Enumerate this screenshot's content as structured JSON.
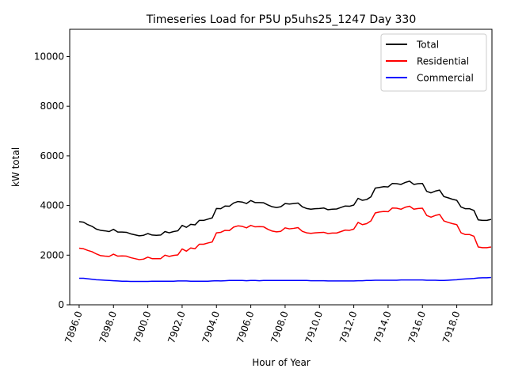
{
  "chart_data": {
    "type": "line",
    "title": "Timeseries Load for P5U p5uhs25_1247  Day 330",
    "xlabel": "Hour of Year",
    "ylabel": "kW total",
    "xlim": [
      7895.45,
      7920.05
    ],
    "ylim": [
      0,
      11100
    ],
    "x_ticks": [
      7896,
      7898,
      7900,
      7902,
      7904,
      7906,
      7908,
      7910,
      7912,
      7914,
      7916,
      7918
    ],
    "x_tick_labels": [
      "7896.0",
      "7898.0",
      "7900.0",
      "7902.0",
      "7904.0",
      "7906.0",
      "7908.0",
      "7910.0",
      "7912.0",
      "7914.0",
      "7916.0",
      "7918.0"
    ],
    "y_ticks": [
      0,
      2000,
      4000,
      6000,
      8000,
      10000
    ],
    "y_tick_labels": [
      "0",
      "2000",
      "4000",
      "6000",
      "8000",
      "10000"
    ],
    "x_start": 7896,
    "x_step": 0.25,
    "grid": false,
    "legend_position": "top-right",
    "series": [
      {
        "name": "Total",
        "color": "#000000",
        "values": [
          3350,
          3330,
          3230,
          3160,
          3050,
          3000,
          2980,
          2950,
          3040,
          2930,
          2930,
          2920,
          2860,
          2820,
          2780,
          2800,
          2870,
          2810,
          2800,
          2810,
          2950,
          2900,
          2950,
          2980,
          3200,
          3120,
          3240,
          3220,
          3400,
          3400,
          3450,
          3500,
          3880,
          3870,
          3980,
          3970,
          4100,
          4160,
          4140,
          4080,
          4200,
          4120,
          4120,
          4110,
          4020,
          3950,
          3920,
          3950,
          4080,
          4060,
          4080,
          4100,
          3950,
          3880,
          3850,
          3870,
          3880,
          3900,
          3830,
          3850,
          3860,
          3920,
          3980,
          3970,
          4020,
          4290,
          4210,
          4240,
          4350,
          4700,
          4730,
          4760,
          4750,
          4890,
          4880,
          4850,
          4930,
          4980,
          4850,
          4880,
          4890,
          4570,
          4510,
          4580,
          4620,
          4360,
          4310,
          4250,
          4210,
          3940,
          3870,
          3870,
          3800,
          3420,
          3400,
          3400,
          3440
        ]
      },
      {
        "name": "Residential",
        "color": "#ff0000",
        "values": [
          2280,
          2260,
          2190,
          2140,
          2050,
          1980,
          1960,
          1950,
          2040,
          1960,
          1970,
          1960,
          1900,
          1860,
          1820,
          1840,
          1920,
          1860,
          1860,
          1860,
          2000,
          1950,
          1990,
          2010,
          2250,
          2160,
          2290,
          2260,
          2440,
          2440,
          2490,
          2530,
          2900,
          2920,
          3000,
          2990,
          3130,
          3180,
          3160,
          3100,
          3200,
          3140,
          3150,
          3140,
          3040,
          2970,
          2940,
          2960,
          3100,
          3060,
          3080,
          3110,
          2960,
          2900,
          2880,
          2900,
          2910,
          2920,
          2870,
          2890,
          2890,
          2950,
          3010,
          3000,
          3050,
          3320,
          3230,
          3270,
          3380,
          3700,
          3740,
          3760,
          3750,
          3900,
          3890,
          3850,
          3930,
          3970,
          3850,
          3880,
          3890,
          3600,
          3530,
          3600,
          3640,
          3380,
          3320,
          3270,
          3230,
          2900,
          2830,
          2830,
          2760,
          2330,
          2300,
          2300,
          2330
        ]
      },
      {
        "name": "Commercial",
        "color": "#0000ff",
        "values": [
          1070,
          1070,
          1050,
          1030,
          1010,
          1000,
          990,
          980,
          970,
          960,
          950,
          950,
          940,
          940,
          940,
          940,
          940,
          950,
          950,
          950,
          950,
          950,
          950,
          960,
          960,
          960,
          950,
          950,
          950,
          950,
          950,
          960,
          970,
          960,
          970,
          980,
          980,
          980,
          980,
          970,
          980,
          980,
          970,
          980,
          980,
          980,
          980,
          980,
          980,
          980,
          980,
          980,
          980,
          980,
          970,
          970,
          970,
          970,
          960,
          960,
          960,
          960,
          960,
          960,
          960,
          970,
          970,
          980,
          980,
          990,
          990,
          990,
          990,
          990,
          990,
          1000,
          1000,
          1000,
          1000,
          1000,
          1000,
          990,
          990,
          990,
          980,
          980,
          990,
          1000,
          1010,
          1030,
          1040,
          1050,
          1060,
          1080,
          1090,
          1090,
          1100
        ]
      }
    ]
  }
}
